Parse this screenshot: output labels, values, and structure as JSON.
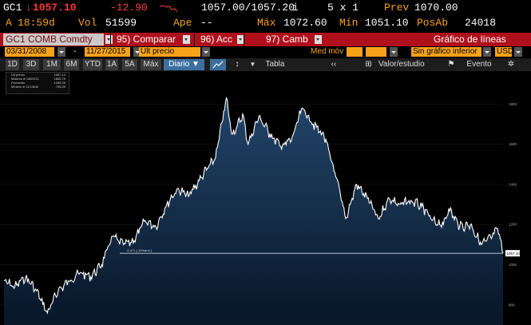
{
  "quote": {
    "ticker": "GC1",
    "last": "1057.10",
    "change": "-12.90",
    "bid_ask": "1057.00/1057.20",
    "bid_ask_flag": "i",
    "size": "5 x 1",
    "prev_label": "Prev",
    "prev_value": "1070.00",
    "time_prefix": "A",
    "time": "18:59d",
    "vol_label": "Vol",
    "vol_value": "51599",
    "open_label": "Ape",
    "open_value": "--",
    "high_label": "Máx",
    "high_value": "1072.60",
    "low_label": "Mín",
    "low_value": "1051.10",
    "oi_label": "PosAb",
    "oi_value": "24018"
  },
  "toolbar": {
    "security": "GC1 COMB Comdty",
    "compare": "95) Comparar",
    "actions": "96) Acc",
    "edit": "97) Camb",
    "chart_title": "Gráfico de líneas"
  },
  "range": {
    "start_date": "03/31/2008",
    "dash": "-",
    "end_date": "11/27/2015",
    "field": "Últ precio",
    "avg_label": "Med móv",
    "lower_chart": "Sin gráfico inferior",
    "currency": "USD"
  },
  "periods": [
    "1D",
    "3D",
    "1M",
    "6M",
    "YTD",
    "1A",
    "5A",
    "Máx"
  ],
  "frequency": "Diario",
  "view": {
    "table": "Tabla",
    "value_study": "Valor/estudio",
    "event": "Evento"
  },
  "legend": [
    {
      "label": "Últ precio",
      "value": "1057.10"
    },
    {
      "label": "Máximo el 08/22/11",
      "value": "1885.75"
    },
    {
      "label": "Promedio",
      "value": "1285.36"
    },
    {
      "label": "Mínimo el 11/13/08",
      "value": "705.00"
    }
  ],
  "colors": {
    "amber": "#f7a21b",
    "bar": "#b0101c",
    "line": "#ffffff",
    "fill_top": "#1e3e5e",
    "fill_bottom": "#0a1a2c"
  },
  "chart_data": {
    "type": "area",
    "title": "",
    "x_range": [
      "2008-03-31",
      "2015-11-27"
    ],
    "y_ticks": [
      800,
      1000,
      1200,
      1400,
      1600,
      1800
    ],
    "ylim": [
      700,
      1960
    ],
    "last_value_label": "1057.10",
    "reference_label": "-0.471 (-10%ann.)",
    "series": [
      {
        "x": [
          "2008-03",
          "2008-05",
          "2008-07",
          "2008-09",
          "2008-11",
          "2009-01",
          "2009-03",
          "2009-05",
          "2009-07",
          "2009-09",
          "2009-11",
          "2010-01",
          "2010-03",
          "2010-05",
          "2010-07",
          "2010-09",
          "2010-11",
          "2011-01",
          "2011-03",
          "2011-05",
          "2011-06",
          "2011-08",
          "2011-09",
          "2011-10",
          "2011-11",
          "2011-12",
          "2012-02",
          "2012-04",
          "2012-06",
          "2012-08",
          "2012-10",
          "2012-12",
          "2013-02",
          "2013-04",
          "2013-06",
          "2013-08",
          "2013-10",
          "2013-12",
          "2014-02",
          "2014-04",
          "2014-06",
          "2014-08",
          "2014-10",
          "2014-12",
          "2015-01",
          "2015-03",
          "2015-05",
          "2015-07",
          "2015-09",
          "2015-10",
          "2015-11"
        ],
        "y": [
          920,
          890,
          940,
          870,
          760,
          870,
          920,
          960,
          940,
          1000,
          1140,
          1100,
          1120,
          1220,
          1190,
          1300,
          1380,
          1340,
          1420,
          1500,
          1530,
          1830,
          1650,
          1690,
          1750,
          1600,
          1740,
          1650,
          1590,
          1620,
          1780,
          1700,
          1640,
          1460,
          1230,
          1400,
          1330,
          1230,
          1330,
          1300,
          1320,
          1290,
          1220,
          1200,
          1280,
          1190,
          1200,
          1100,
          1140,
          1180,
          1057
        ]
      }
    ]
  }
}
